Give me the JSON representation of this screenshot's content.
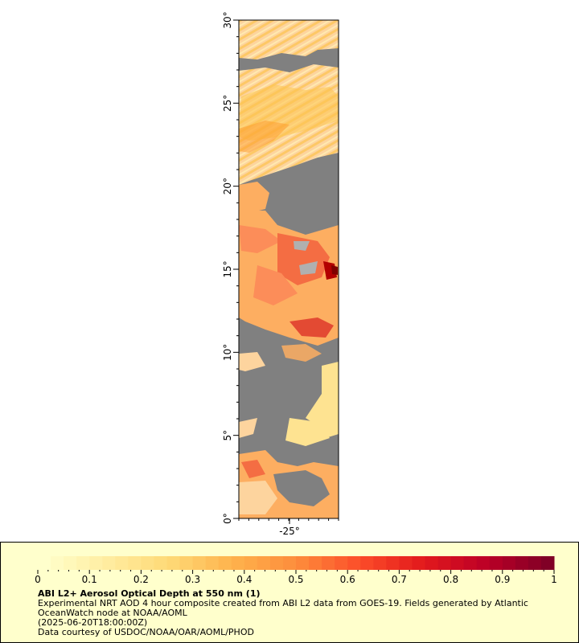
{
  "map": {
    "lat_range": [
      0,
      30
    ],
    "lon_center": -25,
    "lat_ticks": [
      "0°",
      "5°",
      "10°",
      "15°",
      "20°",
      "25°",
      "30°"
    ],
    "lon_ticks": [
      "-25°"
    ],
    "no_data_color": "#808080"
  },
  "colorbar": {
    "min": 0,
    "max": 1,
    "ticks": [
      "0",
      "0.1",
      "0.2",
      "0.3",
      "0.4",
      "0.5",
      "0.6",
      "0.7",
      "0.8",
      "0.9",
      "1"
    ],
    "colors": [
      "#ffffcc",
      "#ffeda0",
      "#fed976",
      "#feb24c",
      "#fd8d3c",
      "#fc4e2a",
      "#e31a1c",
      "#bd0026",
      "#800026"
    ]
  },
  "legend": {
    "title": "ABI L2+ Aerosol Optical Depth at 550 nm (1)",
    "description": "Experimental NRT AOD 4 hour composite created from ABI L2 data from GOES-19. Fields generated by Atlantic OceanWatch node at NOAA/AOML",
    "time": "(2025-06-20T18:00:00Z)",
    "credit": "Data courtesy of USDOC/NOAA/OAR/AOML/PHOD"
  }
}
